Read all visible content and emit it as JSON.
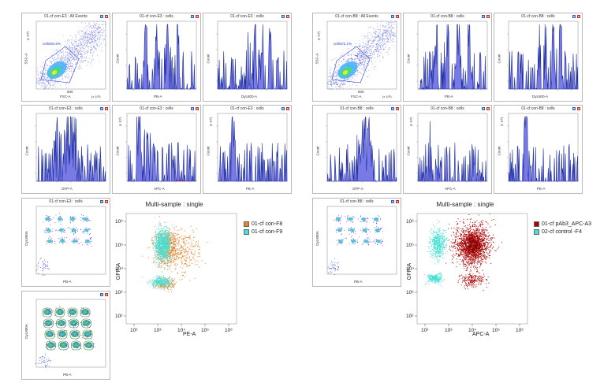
{
  "colors": {
    "histogram_fill": "#7a7ae6",
    "histogram_edge": "#1e2fa0",
    "dot_blue": "#2e3ad0",
    "gate_green": "#4aa860",
    "orange": "#e8822a",
    "cyan": "#46e0d4",
    "darkred": "#b00000"
  },
  "left": {
    "row1": [
      {
        "title": "01-cf con-E3 : All Events",
        "x_label": "FSC-A",
        "y_label": "SSC-A",
        "x_tick": "500",
        "x_exp": "(x 10³)",
        "y_exp": "(x 10³)",
        "gate_label": "cells/84.6%"
      },
      {
        "title": "01-cf con-E3 : cells",
        "x_label": "PB-A",
        "y_label": "Count"
      },
      {
        "title": "01-cf con-E3 : cells",
        "x_label": "DyL800-A",
        "y_label": "Count"
      }
    ],
    "row2": [
      {
        "title": "01-cf con-E3 : cells",
        "x_label": "GFP-A",
        "y_label": "Count"
      },
      {
        "title": "01-cf con-E3 : cells",
        "x_label": "APC-A",
        "y_label": "Count",
        "y_exp": "(x 10³)"
      },
      {
        "title": "01-cf con-E3 : cells",
        "x_label": "PE-A",
        "y_label": "Count",
        "y_exp": "(x 10³)"
      }
    ],
    "row3": {
      "title": "01-cf con-E3 : cells",
      "x_label": "PB-A",
      "y_label": "DyL800A"
    },
    "row4": {
      "title": "",
      "x_label": "PB-A",
      "y_label": "DyL800A"
    },
    "multi": {
      "title": "Multi-sample : single",
      "x_label": "PE-A",
      "y_label": "GFP-A",
      "legend": [
        {
          "label": "01-cf con-F8",
          "color": "#e8822a"
        },
        {
          "label": "01-cf con-F9",
          "color": "#46e0d4"
        }
      ],
      "x_ticks": [
        "10²",
        "10³",
        "10⁴",
        "10⁵",
        "10⁶"
      ],
      "y_ticks": [
        "10²",
        "10³",
        "10⁴",
        "10⁵",
        "10⁶"
      ]
    }
  },
  "right": {
    "row1": [
      {
        "title": "01-cf con-B8 : All Events",
        "x_label": "FSC-A",
        "y_label": "SSC-A",
        "x_tick": "500",
        "x_exp": "(x 10³)",
        "y_exp": "(x 10³)",
        "gate_label": "cells/72.1%"
      },
      {
        "title": "01-cf con-B8 : cells",
        "x_label": "PB-A",
        "y_label": "Count"
      },
      {
        "title": "01-cf con-B8 : cells",
        "x_label": "DyL800-A",
        "y_label": "Count"
      }
    ],
    "row2": [
      {
        "title": "01-cf con-B8 : cells",
        "x_label": "GFP-A",
        "y_label": "Count"
      },
      {
        "title": "01-cf con-B8 : cells",
        "x_label": "APC-A",
        "y_label": "Count",
        "y_exp": "(x 10³)"
      },
      {
        "title": "01-cf con-B8 : cells",
        "x_label": "PE-A",
        "y_label": "Count",
        "y_exp": "(x 10³)"
      }
    ],
    "row3": {
      "title": "01-cf con-B8 : cells",
      "x_label": "PB-A",
      "y_label": "DyL800A"
    },
    "multi": {
      "title": "Multi-sample : single",
      "x_label": "APC-A",
      "y_label": "GFP-A",
      "legend": [
        {
          "label": "01-cf pAb3_APC-A3",
          "color": "#b00000"
        },
        {
          "label": "02-cf control -F4",
          "color": "#46e0d4"
        }
      ],
      "x_ticks": [
        "10²",
        "10³",
        "10⁴",
        "10⁵",
        "10⁶"
      ],
      "y_ticks": [
        "10²",
        "10³",
        "10⁴",
        "10⁵",
        "10⁶"
      ]
    }
  }
}
